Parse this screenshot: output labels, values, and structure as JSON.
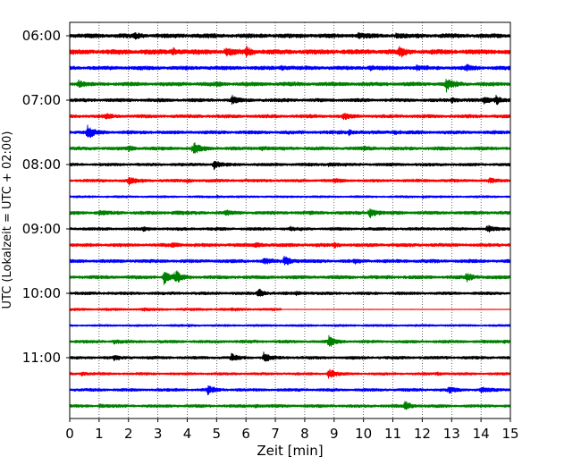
{
  "chart_data": {
    "type": "line",
    "title": "",
    "xlabel": "Zeit  [min]",
    "ylabel": "UTC (Lokalzeit = UTC + 02:00)",
    "xlim": [
      0,
      15
    ],
    "x_ticks": [
      0,
      1,
      2,
      3,
      4,
      5,
      6,
      7,
      8,
      9,
      10,
      11,
      12,
      13,
      14,
      15
    ],
    "y_tick_labels": [
      "06:00",
      "07:00",
      "08:00",
      "09:00",
      "10:00",
      "11:00"
    ],
    "grid": "vertical dotted",
    "trace_colors": [
      "#000000",
      "#ff0000",
      "#0000ff",
      "#008000"
    ],
    "traces": [
      {
        "start": "06:00",
        "amp": 1.0,
        "events": [
          [
            2.2,
            0.7
          ],
          [
            9.8,
            0.6
          ],
          [
            11.1,
            0.5
          ]
        ]
      },
      {
        "start": "06:15",
        "amp": 1.1,
        "events": [
          [
            3.5,
            0.8
          ],
          [
            5.3,
            1.2
          ],
          [
            6.0,
            1.3
          ],
          [
            11.2,
            1.5
          ]
        ]
      },
      {
        "start": "06:30",
        "amp": 0.9,
        "events": [
          [
            7.2,
            0.6
          ],
          [
            10.2,
            0.5
          ],
          [
            11.8,
            0.5
          ],
          [
            13.5,
            0.7
          ]
        ]
      },
      {
        "start": "06:45",
        "amp": 0.9,
        "events": [
          [
            0.3,
            0.8
          ],
          [
            5.0,
            0.5
          ],
          [
            12.8,
            2.0
          ]
        ]
      },
      {
        "start": "07:00",
        "amp": 0.8,
        "events": [
          [
            5.5,
            1.2
          ],
          [
            13.0,
            0.6
          ],
          [
            14.1,
            0.9
          ],
          [
            14.5,
            1.3
          ]
        ]
      },
      {
        "start": "07:15",
        "amp": 0.8,
        "events": [
          [
            1.2,
            0.6
          ],
          [
            9.3,
            1.0
          ]
        ]
      },
      {
        "start": "07:30",
        "amp": 0.8,
        "events": [
          [
            0.6,
            2.3
          ],
          [
            9.5,
            0.6
          ],
          [
            11.0,
            0.6
          ]
        ]
      },
      {
        "start": "07:45",
        "amp": 0.8,
        "events": [
          [
            2.0,
            0.6
          ],
          [
            4.2,
            2.0
          ],
          [
            6.5,
            0.6
          ],
          [
            10.0,
            0.4
          ]
        ]
      },
      {
        "start": "08:00",
        "amp": 0.7,
        "events": [
          [
            4.9,
            1.6
          ],
          [
            8.8,
            0.5
          ]
        ]
      },
      {
        "start": "08:15",
        "amp": 0.7,
        "events": [
          [
            2.0,
            1.3
          ],
          [
            4.0,
            0.4
          ],
          [
            9.0,
            0.4
          ],
          [
            14.3,
            0.6
          ]
        ]
      },
      {
        "start": "08:30",
        "amp": 0.5,
        "events": [
          [
            5.0,
            0.3
          ],
          [
            12.0,
            0.3
          ]
        ]
      },
      {
        "start": "08:45",
        "amp": 0.8,
        "events": [
          [
            1.0,
            0.6
          ],
          [
            3.5,
            0.5
          ],
          [
            5.3,
            0.6
          ],
          [
            10.2,
            1.8
          ]
        ]
      },
      {
        "start": "09:00",
        "amp": 0.7,
        "events": [
          [
            2.5,
            0.4
          ],
          [
            7.5,
            0.4
          ],
          [
            14.2,
            1.0
          ]
        ]
      },
      {
        "start": "09:15",
        "amp": 0.8,
        "events": [
          [
            3.5,
            0.6
          ],
          [
            6.3,
            0.7
          ],
          [
            9.0,
            0.5
          ]
        ]
      },
      {
        "start": "09:30",
        "amp": 0.8,
        "events": [
          [
            6.6,
            0.7
          ],
          [
            7.3,
            1.8
          ],
          [
            9.7,
            0.5
          ]
        ]
      },
      {
        "start": "09:45",
        "amp": 0.8,
        "events": [
          [
            3.2,
            2.5
          ],
          [
            3.6,
            1.8
          ],
          [
            13.5,
            1.3
          ]
        ]
      },
      {
        "start": "10:00",
        "amp": 0.7,
        "events": [
          [
            6.4,
            1.5
          ],
          [
            7.7,
            0.4
          ]
        ]
      },
      {
        "start": "10:15",
        "amp": 0.6,
        "events": [
          [
            2.5,
            0.3
          ],
          [
            5.5,
            0.3
          ]
        ],
        "quiet_after": 7.2
      },
      {
        "start": "10:30",
        "amp": 0.5,
        "events": [
          [
            4.0,
            0.2
          ],
          [
            10.0,
            0.2
          ]
        ]
      },
      {
        "start": "10:45",
        "amp": 0.7,
        "events": [
          [
            1.5,
            0.5
          ],
          [
            8.8,
            1.8
          ],
          [
            14.8,
            0.4
          ]
        ]
      },
      {
        "start": "11:00",
        "amp": 0.7,
        "events": [
          [
            1.5,
            0.5
          ],
          [
            5.5,
            1.0
          ],
          [
            6.6,
            1.4
          ]
        ]
      },
      {
        "start": "11:15",
        "amp": 0.6,
        "events": [
          [
            0.4,
            0.5
          ],
          [
            8.8,
            1.6
          ],
          [
            12.5,
            0.4
          ]
        ]
      },
      {
        "start": "11:30",
        "amp": 0.7,
        "events": [
          [
            4.7,
            1.2
          ],
          [
            12.9,
            0.8
          ],
          [
            14.0,
            1.0
          ]
        ]
      },
      {
        "start": "11:45",
        "amp": 0.7,
        "events": [
          [
            1.0,
            0.5
          ],
          [
            6.3,
            0.4
          ],
          [
            11.4,
            1.4
          ]
        ]
      }
    ]
  }
}
